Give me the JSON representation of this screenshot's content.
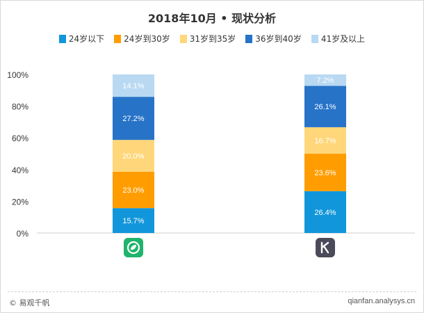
{
  "title": "2018年10月 • 现状分析",
  "footer": {
    "copyright": "© 易观千帆",
    "site": "qianfan.analysys.cn"
  },
  "apps": [
    {
      "icon": "leaf-app-icon",
      "color": "#1fb36b"
    },
    {
      "icon": "k-letter-app-icon",
      "color": "#4a4a5a"
    }
  ],
  "chart_data": {
    "type": "bar",
    "stacked": true,
    "percent_stacked": true,
    "categories": [
      "",
      ""
    ],
    "ylim": [
      0,
      100
    ],
    "yticks": [
      "0%",
      "20%",
      "40%",
      "60%",
      "80%",
      "100%"
    ],
    "legend_position": "top",
    "series": [
      {
        "name": "24岁以下",
        "color": "#1296db",
        "values": [
          15.7,
          26.4
        ],
        "labels": [
          "15.7%",
          "26.4%"
        ]
      },
      {
        "name": "24岁到30岁",
        "color": "#ff9d00",
        "values": [
          23.0,
          23.6
        ],
        "labels": [
          "23.0%",
          "23.6%"
        ]
      },
      {
        "name": "31岁到35岁",
        "color": "#ffd77a",
        "values": [
          20.0,
          16.7
        ],
        "labels": [
          "20.0%",
          "16.7%"
        ]
      },
      {
        "name": "36岁到40岁",
        "color": "#2773c8",
        "values": [
          27.2,
          26.1
        ],
        "labels": [
          "27.2%",
          "26.1%"
        ]
      },
      {
        "name": "41岁及以上",
        "color": "#b9d9f2",
        "values": [
          14.1,
          7.2
        ],
        "labels": [
          "14.1%",
          "7.2%"
        ]
      }
    ]
  }
}
